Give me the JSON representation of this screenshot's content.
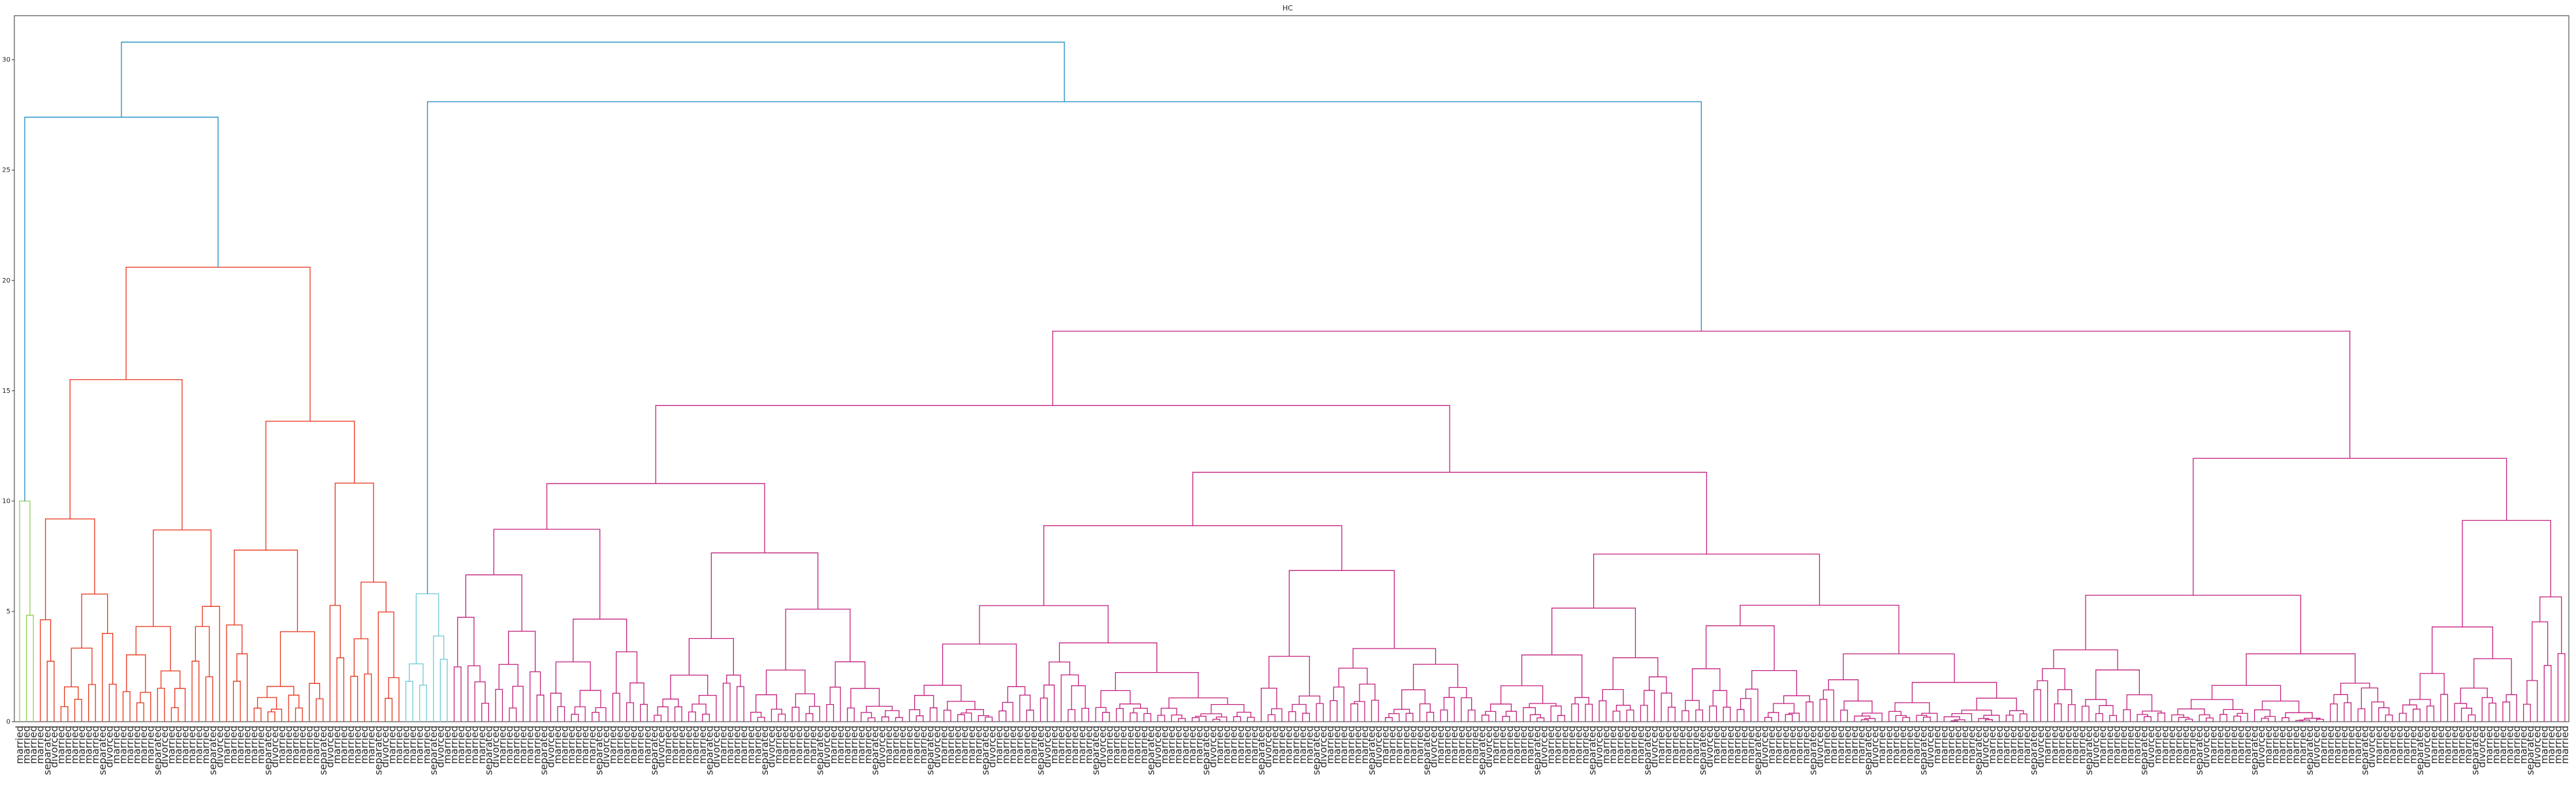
{
  "chart_data": {
    "type": "dendrogram",
    "title": "HC",
    "xlabel": "",
    "ylabel": "",
    "ylim": [
      0,
      32
    ],
    "yticks": [
      0,
      5,
      10,
      15,
      20,
      25,
      30
    ],
    "grid": false,
    "leaf_count": 370,
    "leaf_labels_visible_sample": [
      "married",
      "married",
      "married",
      "married",
      "separated",
      "divorced",
      "married",
      "married"
    ],
    "clusters": [
      {
        "color": "#8fd14f",
        "leaf_range": [
          0,
          3
        ],
        "height": 10.0
      },
      {
        "color": "#e8351e",
        "leaf_range": [
          3,
          56
        ],
        "height": 20.6
      },
      {
        "color": "#6fcbd8",
        "leaf_range": [
          56,
          63
        ],
        "height": 5.8
      },
      {
        "color": "#c4227f",
        "leaf_range": [
          63,
          370
        ],
        "height": 17.7
      }
    ],
    "merges": [
      {
        "left": "cluster-1",
        "right": "cluster-2",
        "height": 27.4,
        "color": "#1f8bc4"
      },
      {
        "left": "cluster-3",
        "right": "cluster-4",
        "height": 28.1,
        "color": "#1f8bc4"
      },
      {
        "left": "group-A",
        "right": "group-B",
        "height": 30.8,
        "color": "#1f8bc4"
      }
    ],
    "colors": {
      "link_above_threshold": "#1f8bc4",
      "axis": "#333333"
    }
  }
}
